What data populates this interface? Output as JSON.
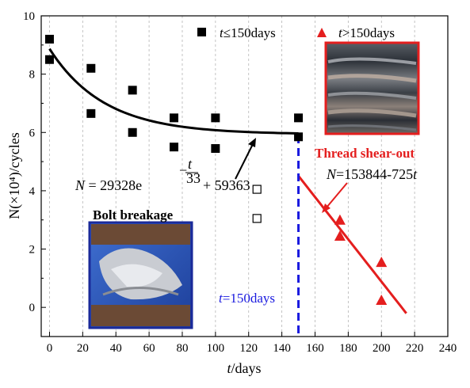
{
  "chart_data": {
    "type": "scatter",
    "x_axis": {
      "label_var": "t",
      "label_unit": "/days",
      "range": [
        -5,
        240
      ],
      "ticks": [
        0,
        20,
        40,
        60,
        80,
        100,
        120,
        140,
        160,
        180,
        200,
        220,
        240
      ]
    },
    "y_axis": {
      "label": "N(×10⁴)/cycles",
      "range": [
        -1,
        10
      ],
      "ticks": [
        0,
        2,
        4,
        6,
        8,
        10
      ]
    },
    "grid": "vertical dashed",
    "legend": [
      {
        "marker": "square",
        "color": "#000000",
        "label_var": "t",
        "label_rest": "≤150days"
      },
      {
        "marker": "triangle",
        "color": "#e41e1e",
        "label_var": "t",
        "label_rest": ">150days"
      }
    ],
    "series": [
      {
        "name": "t≤150days",
        "marker": "filled-square",
        "color": "#000000",
        "points": [
          [
            0,
            9.2
          ],
          [
            0,
            8.5
          ],
          [
            25,
            8.2
          ],
          [
            25,
            6.65
          ],
          [
            50,
            7.45
          ],
          [
            50,
            6.0
          ],
          [
            75,
            6.5
          ],
          [
            75,
            5.5
          ],
          [
            100,
            6.5
          ],
          [
            100,
            5.45
          ],
          [
            150,
            6.5
          ],
          [
            150,
            5.85
          ]
        ]
      },
      {
        "name": "open-squares",
        "marker": "open-square",
        "color": "#000000",
        "points": [
          [
            125,
            4.05
          ],
          [
            125,
            3.05
          ]
        ]
      },
      {
        "name": "t>150days",
        "marker": "filled-triangle",
        "color": "#e41e1e",
        "points": [
          [
            175,
            3.0
          ],
          [
            175,
            2.45
          ],
          [
            200,
            1.55
          ],
          [
            200,
            0.25
          ]
        ]
      }
    ],
    "fits": [
      {
        "name": "exponential",
        "color": "#000000",
        "a": 29328,
        "tau": 33,
        "c": 59363,
        "scale": 10000,
        "x_range": [
          0,
          150
        ]
      },
      {
        "name": "linear",
        "color": "#e41e1e",
        "intercept": 153844,
        "slope": -725,
        "scale": 10000,
        "x_range": [
          150,
          215
        ]
      }
    ],
    "vline": {
      "x": 150,
      "color": "#1a1adf",
      "label_var": "t",
      "label_rest": "=150days"
    },
    "annotations": {
      "exp_eq": {
        "lhs": "N",
        "mid": " = 29328e",
        "exp_num": "t",
        "exp_den": "33",
        "exp_sign": "−",
        "rhs": "+ 59363"
      },
      "lin_eq": {
        "lhs": "N",
        "rest": "=153844-725",
        "var": "t"
      },
      "thread": "Thread shear-out",
      "bolt": "Bolt breakage"
    },
    "colors": {
      "black": "#000000",
      "red": "#e41e1e",
      "blue": "#1a1adf",
      "photo_border_red": "#e41e1e",
      "photo_border_blue": "#1a2a9a"
    }
  }
}
